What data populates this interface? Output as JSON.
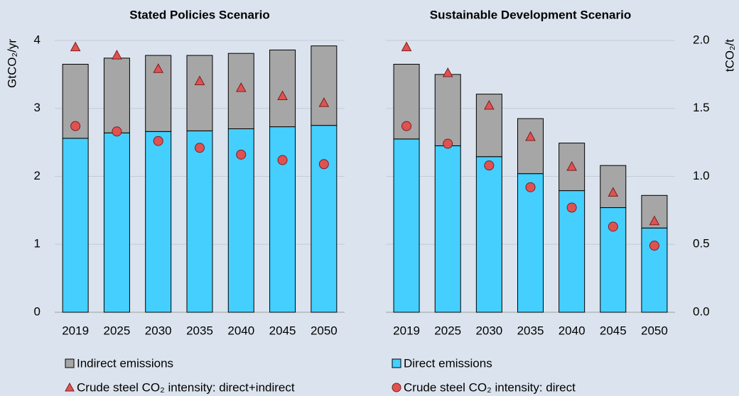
{
  "chart_data": [
    {
      "type": "bar",
      "stacked": true,
      "title": "Stated Policies Scenario",
      "y_label": "GtCO₂/yr",
      "categories": [
        "2019",
        "2025",
        "2030",
        "2035",
        "2040",
        "2045",
        "2050"
      ],
      "ylim": [
        0,
        4
      ],
      "yticks": [
        0,
        1,
        2,
        3,
        4
      ],
      "grid": true,
      "series": [
        {
          "name": "Direct emissions",
          "color": "#45cfff",
          "marker": "bar",
          "values": [
            2.56,
            2.64,
            2.66,
            2.67,
            2.7,
            2.73,
            2.75
          ]
        },
        {
          "name": "Indirect emissions",
          "color": "#a6a6a6",
          "marker": "bar",
          "values": [
            1.09,
            1.1,
            1.12,
            1.11,
            1.11,
            1.13,
            1.17
          ]
        },
        {
          "name": "Crude steel CO₂ intensity: direct+indirect",
          "color": "#e05252",
          "marker": "triangle",
          "axis": "y2",
          "values": [
            1.95,
            1.89,
            1.79,
            1.7,
            1.65,
            1.59,
            1.54
          ]
        },
        {
          "name": "Crude steel CO₂ intensity: direct",
          "color": "#e05252",
          "marker": "circle",
          "axis": "y2",
          "values": [
            1.37,
            1.33,
            1.26,
            1.21,
            1.16,
            1.12,
            1.09
          ]
        }
      ]
    },
    {
      "type": "bar",
      "stacked": true,
      "title": "Sustainable Development Scenario",
      "y2_label": "tCO₂/t",
      "categories": [
        "2019",
        "2025",
        "2030",
        "2035",
        "2040",
        "2045",
        "2050"
      ],
      "y2lim": [
        0,
        2
      ],
      "y2ticks": [
        {
          "value": 0,
          "label": "0.0"
        },
        {
          "value": 0.5,
          "label": "0.5"
        },
        {
          "value": 1,
          "label": "1.0"
        },
        {
          "value": 1.5,
          "label": "1.5"
        },
        {
          "value": 2,
          "label": "2.0"
        }
      ],
      "series": [
        {
          "color": "#45cfff",
          "marker": "bar",
          "values": [
            2.55,
            2.45,
            2.29,
            2.04,
            1.79,
            1.54,
            1.24
          ]
        },
        {
          "color": "#a6a6a6",
          "marker": "bar",
          "values": [
            1.1,
            1.05,
            0.92,
            0.81,
            0.7,
            0.62,
            0.48
          ]
        },
        {
          "color": "#e05252",
          "marker": "triangle",
          "axis": "y2",
          "values": [
            1.95,
            1.76,
            1.52,
            1.29,
            1.07,
            0.88,
            0.67
          ]
        },
        {
          "color": "#e05252",
          "marker": "circle",
          "axis": "y2",
          "values": [
            1.37,
            1.24,
            1.08,
            0.92,
            0.77,
            0.63,
            0.49
          ]
        }
      ]
    }
  ]
}
